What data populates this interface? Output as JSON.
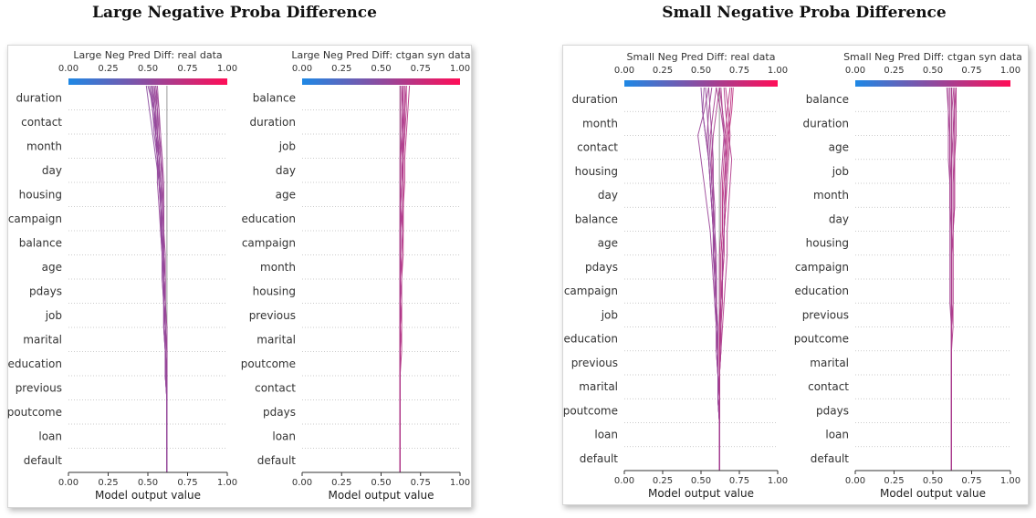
{
  "group_titles": {
    "left": "Large Negative Proba Difference",
    "right": "Small Negative Proba Difference"
  },
  "colorbar": {
    "low_color": "#1e88e5",
    "high_color": "#ff0d57",
    "ticks": [
      "0.00",
      "0.25",
      "0.50",
      "0.75",
      "1.00"
    ]
  },
  "chart_data": [
    {
      "type": "decision_plot",
      "colorbar_title": "Large Neg Pred Diff: real data",
      "xlabel": "Model output value",
      "xlim": [
        0,
        1
      ],
      "xticks": [
        "0.00",
        "0.25",
        "0.50",
        "0.75",
        "1.00"
      ],
      "base_value": 0.62,
      "features": [
        "duration",
        "contact",
        "month",
        "day",
        "housing",
        "campaign",
        "balance",
        "age",
        "pdays",
        "job",
        "marital",
        "education",
        "previous",
        "poutcome",
        "loan",
        "default"
      ],
      "lines": [
        [
          0.62,
          0.62,
          0.62,
          0.62,
          0.615,
          0.61,
          0.6,
          0.6,
          0.59,
          0.59,
          0.585,
          0.58,
          0.58,
          0.57,
          0.56,
          0.54,
          0.5
        ],
        [
          0.62,
          0.62,
          0.62,
          0.62,
          0.62,
          0.61,
          0.61,
          0.6,
          0.6,
          0.6,
          0.59,
          0.59,
          0.58,
          0.57,
          0.55,
          0.53,
          0.52
        ],
        [
          0.62,
          0.62,
          0.62,
          0.62,
          0.61,
          0.61,
          0.6,
          0.6,
          0.6,
          0.59,
          0.58,
          0.58,
          0.57,
          0.56,
          0.55,
          0.54,
          0.53
        ],
        [
          0.62,
          0.62,
          0.62,
          0.62,
          0.62,
          0.62,
          0.61,
          0.61,
          0.6,
          0.6,
          0.6,
          0.59,
          0.59,
          0.58,
          0.56,
          0.56,
          0.54
        ],
        [
          0.62,
          0.62,
          0.62,
          0.62,
          0.62,
          0.61,
          0.61,
          0.61,
          0.61,
          0.6,
          0.6,
          0.6,
          0.59,
          0.59,
          0.57,
          0.57,
          0.55
        ],
        [
          0.62,
          0.62,
          0.62,
          0.62,
          0.61,
          0.61,
          0.61,
          0.6,
          0.6,
          0.59,
          0.59,
          0.58,
          0.57,
          0.55,
          0.53,
          0.51,
          0.49
        ],
        [
          0.62,
          0.62,
          0.62,
          0.62,
          0.62,
          0.62,
          0.62,
          0.61,
          0.61,
          0.61,
          0.6,
          0.6,
          0.6,
          0.59,
          0.58,
          0.57,
          0.56
        ],
        [
          0.62,
          0.62,
          0.62,
          0.62,
          0.62,
          0.61,
          0.61,
          0.61,
          0.6,
          0.59,
          0.59,
          0.58,
          0.58,
          0.56,
          0.54,
          0.53,
          0.51
        ],
        [
          0.62,
          0.62,
          0.62,
          0.62,
          0.61,
          0.61,
          0.6,
          0.6,
          0.59,
          0.59,
          0.58,
          0.57,
          0.56,
          0.56,
          0.55,
          0.55,
          0.53
        ],
        [
          0.62,
          0.62,
          0.62,
          0.62,
          0.62,
          0.62,
          0.61,
          0.61,
          0.61,
          0.6,
          0.6,
          0.6,
          0.59,
          0.58,
          0.57,
          0.56,
          0.55
        ],
        [
          0.62,
          0.62,
          0.62,
          0.62,
          0.62,
          0.61,
          0.61,
          0.61,
          0.6,
          0.6,
          0.59,
          0.59,
          0.58,
          0.57,
          0.56,
          0.55,
          0.54
        ],
        [
          0.62,
          0.62,
          0.62,
          0.62,
          0.61,
          0.61,
          0.61,
          0.6,
          0.6,
          0.6,
          0.59,
          0.58,
          0.57,
          0.57,
          0.55,
          0.54,
          0.52
        ]
      ]
    },
    {
      "type": "decision_plot",
      "colorbar_title": "Large Neg Pred Diff: ctgan syn data",
      "xlabel": "Model output value",
      "xlim": [
        0,
        1
      ],
      "xticks": [
        "0.00",
        "0.25",
        "0.50",
        "0.75",
        "1.00"
      ],
      "base_value": 0.62,
      "features": [
        "balance",
        "duration",
        "job",
        "day",
        "age",
        "education",
        "campaign",
        "month",
        "housing",
        "previous",
        "marital",
        "poutcome",
        "contact",
        "pdays",
        "loan",
        "default"
      ],
      "lines": [
        [
          0.62,
          0.62,
          0.62,
          0.62,
          0.62,
          0.62,
          0.63,
          0.63,
          0.63,
          0.63,
          0.63,
          0.64,
          0.64,
          0.64,
          0.65,
          0.66,
          0.66
        ],
        [
          0.62,
          0.62,
          0.62,
          0.62,
          0.62,
          0.62,
          0.62,
          0.63,
          0.63,
          0.63,
          0.63,
          0.63,
          0.63,
          0.64,
          0.64,
          0.65,
          0.65
        ],
        [
          0.62,
          0.62,
          0.62,
          0.62,
          0.62,
          0.62,
          0.62,
          0.62,
          0.62,
          0.63,
          0.63,
          0.63,
          0.63,
          0.63,
          0.64,
          0.64,
          0.64
        ],
        [
          0.62,
          0.62,
          0.62,
          0.62,
          0.62,
          0.62,
          0.62,
          0.62,
          0.62,
          0.62,
          0.62,
          0.62,
          0.63,
          0.63,
          0.63,
          0.63,
          0.63
        ],
        [
          0.62,
          0.62,
          0.62,
          0.62,
          0.62,
          0.62,
          0.62,
          0.62,
          0.62,
          0.62,
          0.62,
          0.62,
          0.62,
          0.62,
          0.62,
          0.62,
          0.62
        ],
        [
          0.62,
          0.62,
          0.62,
          0.62,
          0.62,
          0.63,
          0.63,
          0.63,
          0.63,
          0.64,
          0.64,
          0.64,
          0.65,
          0.65,
          0.66,
          0.67,
          0.68
        ],
        [
          0.62,
          0.62,
          0.62,
          0.62,
          0.62,
          0.62,
          0.62,
          0.62,
          0.63,
          0.63,
          0.63,
          0.63,
          0.63,
          0.64,
          0.64,
          0.64,
          0.63
        ],
        [
          0.62,
          0.62,
          0.62,
          0.62,
          0.62,
          0.62,
          0.62,
          0.62,
          0.62,
          0.62,
          0.62,
          0.63,
          0.63,
          0.63,
          0.63,
          0.64,
          0.64
        ],
        [
          0.62,
          0.62,
          0.62,
          0.62,
          0.62,
          0.62,
          0.62,
          0.62,
          0.62,
          0.62,
          0.62,
          0.62,
          0.62,
          0.62,
          0.63,
          0.63,
          0.63
        ],
        [
          0.62,
          0.62,
          0.62,
          0.62,
          0.62,
          0.62,
          0.62,
          0.63,
          0.63,
          0.63,
          0.64,
          0.64,
          0.64,
          0.64,
          0.65,
          0.65,
          0.66
        ]
      ]
    },
    {
      "type": "decision_plot",
      "colorbar_title": "Small Neg Pred Diff: real data",
      "xlabel": "Model output value",
      "xlim": [
        0,
        1
      ],
      "xticks": [
        "0.00",
        "0.25",
        "0.50",
        "0.75",
        "1.00"
      ],
      "base_value": 0.62,
      "features": [
        "duration",
        "month",
        "contact",
        "housing",
        "day",
        "balance",
        "age",
        "pdays",
        "campaign",
        "job",
        "education",
        "previous",
        "marital",
        "poutcome",
        "loan",
        "default"
      ],
      "lines": [
        [
          0.62,
          0.62,
          0.62,
          0.61,
          0.61,
          0.6,
          0.6,
          0.59,
          0.58,
          0.57,
          0.56,
          0.54,
          0.52,
          0.5,
          0.48,
          0.52,
          0.55
        ],
        [
          0.62,
          0.62,
          0.62,
          0.62,
          0.62,
          0.63,
          0.64,
          0.65,
          0.66,
          0.67,
          0.67,
          0.68,
          0.69,
          0.7,
          0.68,
          0.66,
          0.65
        ],
        [
          0.62,
          0.62,
          0.62,
          0.61,
          0.61,
          0.61,
          0.6,
          0.6,
          0.59,
          0.58,
          0.58,
          0.57,
          0.56,
          0.55,
          0.53,
          0.51,
          0.5
        ],
        [
          0.62,
          0.62,
          0.62,
          0.62,
          0.62,
          0.62,
          0.63,
          0.63,
          0.64,
          0.65,
          0.65,
          0.66,
          0.66,
          0.67,
          0.66,
          0.64,
          0.62
        ],
        [
          0.62,
          0.62,
          0.62,
          0.62,
          0.61,
          0.61,
          0.6,
          0.6,
          0.6,
          0.59,
          0.59,
          0.58,
          0.58,
          0.57,
          0.56,
          0.58,
          0.6
        ],
        [
          0.62,
          0.62,
          0.62,
          0.62,
          0.62,
          0.62,
          0.62,
          0.63,
          0.63,
          0.63,
          0.64,
          0.64,
          0.65,
          0.66,
          0.67,
          0.69,
          0.7
        ],
        [
          0.62,
          0.62,
          0.62,
          0.61,
          0.61,
          0.6,
          0.6,
          0.6,
          0.59,
          0.59,
          0.58,
          0.58,
          0.57,
          0.57,
          0.58,
          0.6,
          0.62
        ],
        [
          0.62,
          0.62,
          0.62,
          0.62,
          0.62,
          0.62,
          0.62,
          0.62,
          0.62,
          0.62,
          0.63,
          0.63,
          0.63,
          0.64,
          0.65,
          0.64,
          0.63
        ],
        [
          0.62,
          0.62,
          0.62,
          0.62,
          0.61,
          0.61,
          0.61,
          0.6,
          0.6,
          0.6,
          0.59,
          0.59,
          0.58,
          0.58,
          0.57,
          0.56,
          0.55
        ],
        [
          0.62,
          0.62,
          0.62,
          0.62,
          0.62,
          0.63,
          0.63,
          0.64,
          0.64,
          0.65,
          0.65,
          0.66,
          0.67,
          0.68,
          0.69,
          0.68,
          0.66
        ],
        [
          0.62,
          0.62,
          0.62,
          0.61,
          0.61,
          0.61,
          0.61,
          0.6,
          0.6,
          0.59,
          0.59,
          0.58,
          0.57,
          0.56,
          0.55,
          0.54,
          0.53
        ],
        [
          0.62,
          0.62,
          0.62,
          0.62,
          0.62,
          0.62,
          0.63,
          0.63,
          0.64,
          0.64,
          0.65,
          0.66,
          0.66,
          0.67,
          0.68,
          0.7,
          0.71
        ],
        [
          0.62,
          0.62,
          0.62,
          0.62,
          0.61,
          0.61,
          0.6,
          0.6,
          0.59,
          0.59,
          0.58,
          0.57,
          0.56,
          0.55,
          0.54,
          0.55,
          0.57
        ],
        [
          0.62,
          0.62,
          0.62,
          0.62,
          0.62,
          0.62,
          0.62,
          0.63,
          0.63,
          0.63,
          0.64,
          0.64,
          0.64,
          0.65,
          0.66,
          0.67,
          0.69
        ],
        [
          0.62,
          0.62,
          0.62,
          0.61,
          0.61,
          0.6,
          0.6,
          0.59,
          0.59,
          0.58,
          0.58,
          0.57,
          0.56,
          0.55,
          0.53,
          0.51,
          0.52
        ],
        [
          0.62,
          0.62,
          0.62,
          0.62,
          0.62,
          0.63,
          0.63,
          0.63,
          0.64,
          0.64,
          0.65,
          0.65,
          0.66,
          0.66,
          0.65,
          0.63,
          0.6
        ]
      ]
    },
    {
      "type": "decision_plot",
      "colorbar_title": "Small Neg Pred Diff: ctgan syn data",
      "xlabel": "Model output value",
      "xlim": [
        0,
        1
      ],
      "xticks": [
        "0.00",
        "0.25",
        "0.50",
        "0.75",
        "1.00"
      ],
      "base_value": 0.62,
      "features": [
        "balance",
        "duration",
        "age",
        "job",
        "month",
        "day",
        "housing",
        "campaign",
        "education",
        "previous",
        "poutcome",
        "marital",
        "contact",
        "pdays",
        "loan",
        "default"
      ],
      "lines": [
        [
          0.62,
          0.62,
          0.62,
          0.62,
          0.62,
          0.62,
          0.63,
          0.63,
          0.63,
          0.63,
          0.63,
          0.64,
          0.64,
          0.64,
          0.64,
          0.64,
          0.65
        ],
        [
          0.62,
          0.62,
          0.62,
          0.62,
          0.62,
          0.62,
          0.62,
          0.62,
          0.62,
          0.62,
          0.62,
          0.61,
          0.61,
          0.61,
          0.61,
          0.6,
          0.6
        ],
        [
          0.62,
          0.62,
          0.62,
          0.62,
          0.62,
          0.62,
          0.62,
          0.62,
          0.62,
          0.62,
          0.62,
          0.62,
          0.62,
          0.62,
          0.62,
          0.62,
          0.62
        ],
        [
          0.62,
          0.62,
          0.62,
          0.62,
          0.62,
          0.62,
          0.62,
          0.63,
          0.63,
          0.63,
          0.63,
          0.63,
          0.63,
          0.64,
          0.64,
          0.64,
          0.64
        ],
        [
          0.62,
          0.62,
          0.62,
          0.62,
          0.62,
          0.62,
          0.62,
          0.61,
          0.61,
          0.61,
          0.61,
          0.61,
          0.61,
          0.6,
          0.6,
          0.6,
          0.59
        ],
        [
          0.62,
          0.62,
          0.62,
          0.62,
          0.62,
          0.62,
          0.62,
          0.62,
          0.62,
          0.62,
          0.63,
          0.63,
          0.63,
          0.63,
          0.63,
          0.64,
          0.63
        ],
        [
          0.62,
          0.62,
          0.62,
          0.62,
          0.62,
          0.62,
          0.62,
          0.62,
          0.62,
          0.62,
          0.62,
          0.62,
          0.62,
          0.61,
          0.61,
          0.61,
          0.61
        ],
        [
          0.62,
          0.62,
          0.62,
          0.62,
          0.62,
          0.62,
          0.62,
          0.63,
          0.63,
          0.63,
          0.63,
          0.64,
          0.64,
          0.64,
          0.65,
          0.65,
          0.65
        ],
        [
          0.62,
          0.62,
          0.62,
          0.62,
          0.62,
          0.62,
          0.62,
          0.62,
          0.62,
          0.62,
          0.62,
          0.62,
          0.62,
          0.62,
          0.63,
          0.63,
          0.62
        ]
      ]
    }
  ]
}
